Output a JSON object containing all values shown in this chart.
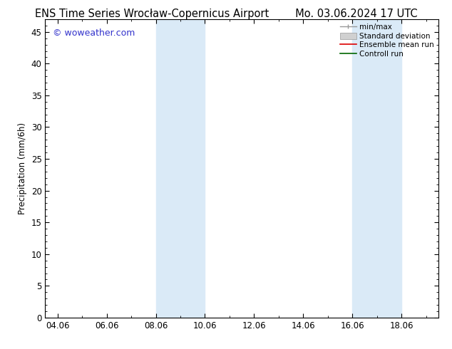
{
  "title_left": "ENS Time Series Wrocław-Copernicus Airport",
  "title_right": "Mo. 03.06.2024 17 UTC",
  "ylabel": "Precipitation (mm/6h)",
  "watermark": "© woweather.com",
  "xlim_start": 3.5,
  "xlim_end": 19.5,
  "ylim": [
    0,
    47
  ],
  "yticks": [
    0,
    5,
    10,
    15,
    20,
    25,
    30,
    35,
    40,
    45
  ],
  "xtick_labels": [
    "04.06",
    "06.06",
    "08.06",
    "10.06",
    "12.06",
    "14.06",
    "16.06",
    "18.06"
  ],
  "xtick_positions": [
    4,
    6,
    8,
    10,
    12,
    14,
    16,
    18
  ],
  "shaded_bands": [
    {
      "x_start": 8.0,
      "x_end": 10.0
    },
    {
      "x_start": 16.0,
      "x_end": 18.0
    }
  ],
  "shade_color": "#daeaf7",
  "shade_alpha": 1.0,
  "legend_labels": [
    "min/max",
    "Standard deviation",
    "Ensemble mean run",
    "Controll run"
  ],
  "legend_colors": [
    "#aaaaaa",
    "#cccccc",
    "#ff0000",
    "#008000"
  ],
  "background_color": "#ffffff",
  "title_fontsize": 10.5,
  "tick_fontsize": 8.5,
  "ylabel_fontsize": 8.5,
  "watermark_color": "#3333cc",
  "watermark_fontsize": 9
}
